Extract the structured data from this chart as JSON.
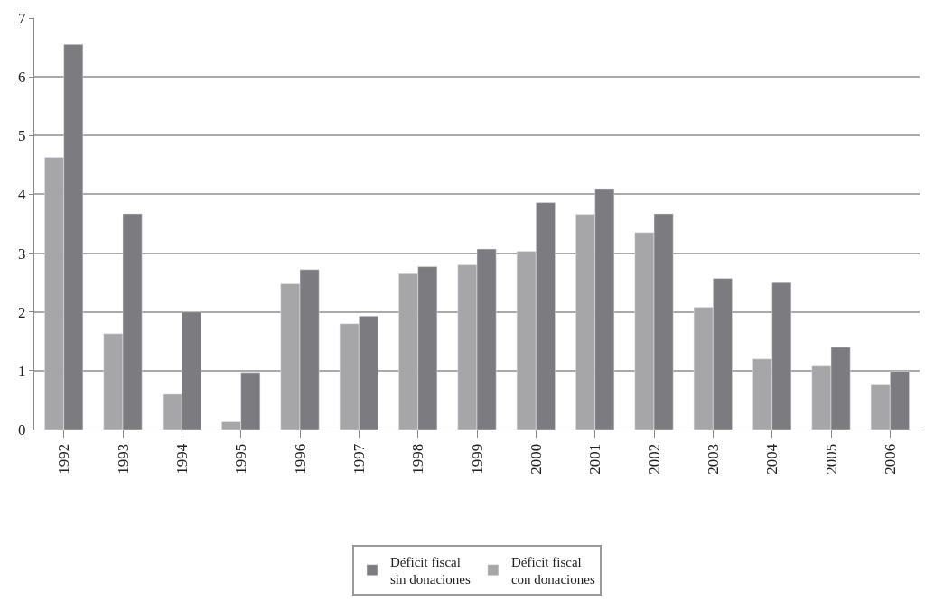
{
  "chart_data": {
    "type": "bar",
    "categories": [
      "1992",
      "1993",
      "1994",
      "1995",
      "1996",
      "1997",
      "1998",
      "1999",
      "2000",
      "2001",
      "2002",
      "2003",
      "2004",
      "2005",
      "2006"
    ],
    "series": [
      {
        "name": "Déficit fiscal\ncon donaciones",
        "color": "#a6a6a8",
        "values": [
          4.63,
          1.63,
          0.6,
          0.13,
          2.48,
          1.8,
          2.65,
          2.8,
          3.03,
          3.66,
          3.35,
          2.08,
          1.2,
          1.08,
          0.76
        ]
      },
      {
        "name": "Déficit fiscal\nsin donaciones",
        "color": "#7c7c80",
        "values": [
          6.55,
          3.67,
          2.0,
          0.97,
          2.72,
          1.93,
          2.77,
          3.07,
          3.86,
          4.1,
          3.67,
          2.57,
          2.5,
          1.4,
          0.99
        ]
      }
    ],
    "ylim": [
      0,
      7
    ],
    "yticks": [
      0,
      1,
      2,
      3,
      4,
      5,
      6,
      7
    ],
    "grid": "y",
    "legend": "bottom"
  }
}
